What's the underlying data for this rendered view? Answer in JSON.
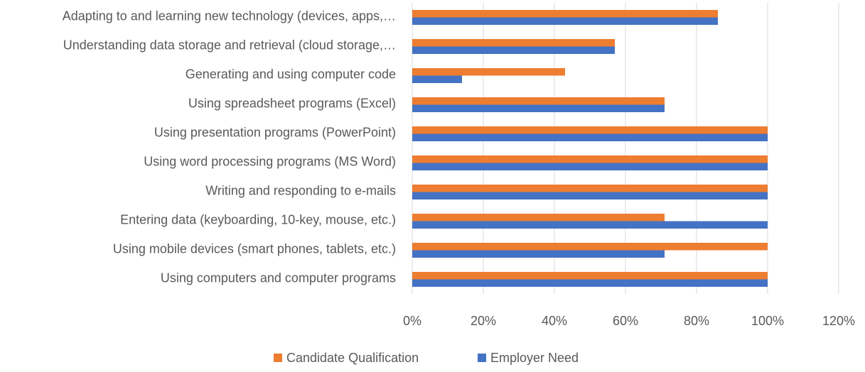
{
  "chart_data": {
    "type": "bar",
    "orientation": "horizontal",
    "categories": [
      "Using computers and computer programs",
      "Using mobile devices (smart phones, tablets, etc.)",
      "Entering data (keyboarding, 10-key, mouse, etc.)",
      "Writing and responding to e-mails",
      "Using word processing programs (MS Word)",
      "Using presentation programs (PowerPoint)",
      "Using spreadsheet programs  (Excel)",
      "Generating and using computer code",
      "Understanding data storage and retrieval (cloud storage,…",
      "Adapting to and learning new technology (devices, apps,…"
    ],
    "series": [
      {
        "name": "Candidate Qualification",
        "color": "#ed7d31",
        "values": [
          100,
          100,
          71,
          100,
          100,
          100,
          71,
          43,
          57,
          86
        ]
      },
      {
        "name": "Employer Need",
        "color": "#4472c4",
        "values": [
          100,
          71,
          100,
          100,
          100,
          100,
          71,
          14,
          57,
          86
        ]
      }
    ],
    "xlim": [
      0,
      120
    ],
    "xticks": [
      {
        "value": 0,
        "label": "0%"
      },
      {
        "value": 20,
        "label": "20%"
      },
      {
        "value": 40,
        "label": "40%"
      },
      {
        "value": 60,
        "label": "60%"
      },
      {
        "value": 80,
        "label": "80%"
      },
      {
        "value": 100,
        "label": "100%"
      },
      {
        "value": 120,
        "label": "120%"
      }
    ],
    "grid": true,
    "legend": "bottom"
  }
}
